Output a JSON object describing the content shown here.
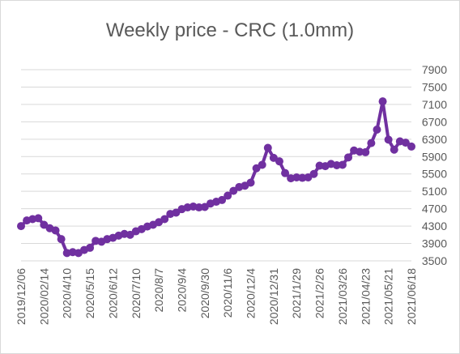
{
  "chart_data": {
    "type": "line",
    "title": "Weekly price - CRC (1.0mm)",
    "xlabel": "",
    "ylabel": "",
    "ylim": [
      3500,
      7900
    ],
    "y_ticks": [
      3500,
      3900,
      4300,
      4700,
      5100,
      5500,
      5900,
      6300,
      6700,
      7100,
      7500,
      7900
    ],
    "y_axis_side": "right",
    "x_tick_labels": [
      "2019/12/06",
      "2020/02/14",
      "2020/4/10",
      "2020/5/15",
      "2020/6/12",
      "2020/7/10",
      "2020/8/7",
      "2020/9/4",
      "2020/9/30",
      "2020/11/6",
      "2020/12/4",
      "2020/12/31",
      "2021/1/29",
      "2021/2/26",
      "2021/03/26",
      "2021/04/23",
      "2021/05/21",
      "2021/06/18"
    ],
    "grid": true,
    "legend": "none",
    "series": [
      {
        "color": "#7030a0",
        "values": [
          4300,
          4430,
          4460,
          4480,
          4330,
          4250,
          4200,
          4000,
          3680,
          3700,
          3680,
          3750,
          3800,
          3960,
          3940,
          4000,
          4030,
          4080,
          4120,
          4100,
          4180,
          4230,
          4290,
          4330,
          4390,
          4460,
          4580,
          4610,
          4690,
          4730,
          4750,
          4730,
          4740,
          4820,
          4860,
          4900,
          5000,
          5110,
          5200,
          5230,
          5300,
          5630,
          5710,
          6100,
          5870,
          5790,
          5520,
          5400,
          5420,
          5410,
          5420,
          5500,
          5690,
          5680,
          5730,
          5700,
          5710,
          5880,
          6040,
          6010,
          6000,
          6210,
          6520,
          7170,
          6290,
          6060,
          6250,
          6220,
          6130
        ]
      }
    ]
  }
}
